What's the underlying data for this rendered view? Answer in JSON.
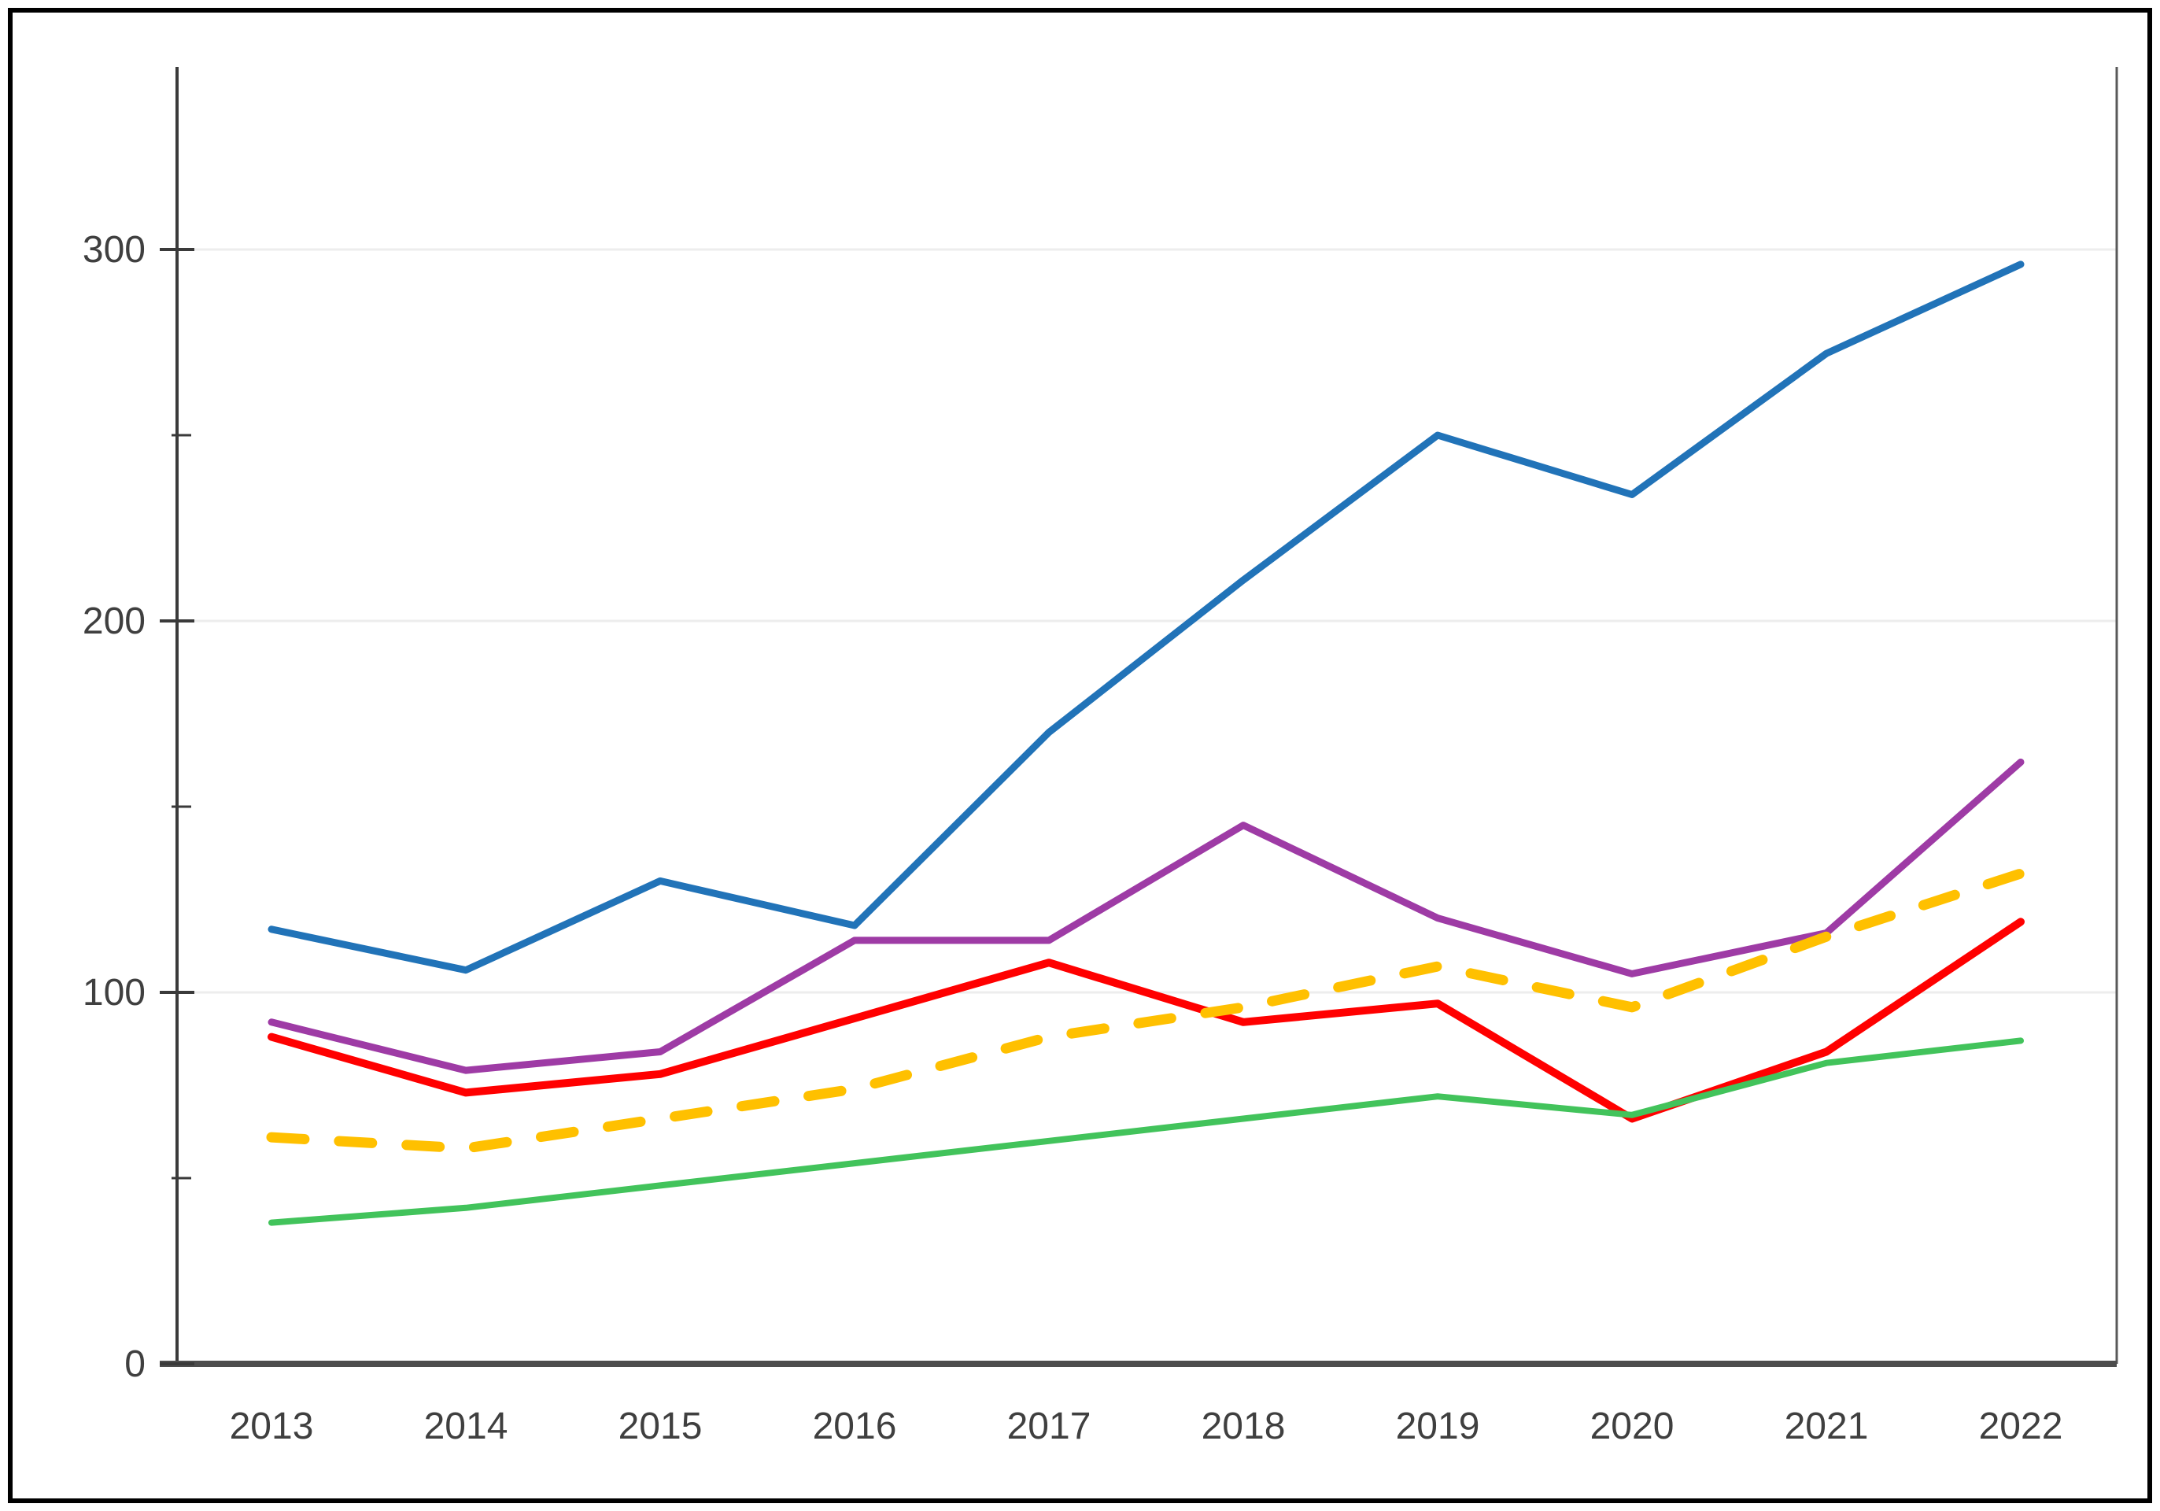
{
  "colors": {
    "background": "#FFFFFF",
    "outer_frame": "#000000",
    "axis": "#3A3A3A",
    "baseline": "#4D4D4D",
    "right_border": "#595959",
    "gridline": "#EDEDED",
    "tick_label": "#3F3F3F"
  },
  "chart_data": {
    "type": "line",
    "title": "",
    "xlabel": "",
    "ylabel": "",
    "legend": "none",
    "grid": "horizontal",
    "x_categories": [
      "2013",
      "2014",
      "2015",
      "2016",
      "2017",
      "2018",
      "2019",
      "2020",
      "2021",
      "2022"
    ],
    "ylim": [
      0,
      350
    ],
    "yticks_major": [
      0,
      100,
      200,
      300
    ],
    "yticks_minor": [
      50,
      150,
      250
    ],
    "series": [
      {
        "name": "blue",
        "color": "#2173B8",
        "style": "solid",
        "width": 9,
        "values": [
          117,
          106,
          130,
          118,
          170,
          211,
          250,
          234,
          272,
          296
        ]
      },
      {
        "name": "purple",
        "color": "#9E3BA5",
        "style": "solid",
        "width": 9,
        "values": [
          92,
          79,
          84,
          114,
          114,
          145,
          120,
          105,
          116,
          162
        ]
      },
      {
        "name": "red",
        "color": "#FF0000",
        "style": "solid",
        "width": 10,
        "values": [
          88,
          73,
          78,
          93,
          108,
          92,
          97,
          66,
          84,
          119
        ]
      },
      {
        "name": "green",
        "color": "#42C35B",
        "style": "solid",
        "width": 8,
        "values": [
          38,
          42,
          48,
          54,
          60,
          66,
          72,
          67,
          81,
          87
        ]
      },
      {
        "name": "orange-dashed",
        "color": "#FFC000",
        "style": "dashed",
        "width": 13,
        "values": [
          61,
          58,
          66,
          74,
          88,
          96,
          107,
          96,
          115,
          132
        ]
      }
    ]
  }
}
